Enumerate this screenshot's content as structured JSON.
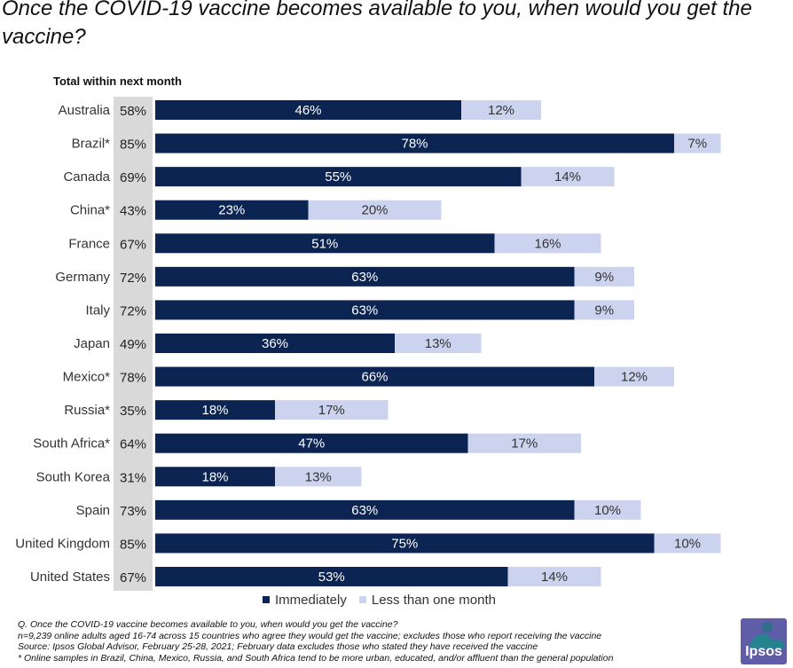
{
  "title": "Once the COVID-19 vaccine becomes available to you, when would you get the vaccine?",
  "total_label": "Total within next month",
  "colors": {
    "immediately": "#0c2452",
    "less_than_month": "#ccd3ee",
    "total_strip": "#d9d9d9",
    "brand": "#5f5ca8"
  },
  "legend": {
    "immediately": "Immediately",
    "less_than_month": "Less than one month"
  },
  "footnotes": {
    "question": "Q. Once the COVID-19 vaccine becomes available to you, when would you get the vaccine?",
    "sample": "n=9,239 online adults aged 16-74 across 15 countries who agree they would get the vaccine; excludes those who report receiving the vaccine",
    "source": "Source: Ipsos Global Advisor, February 25-28, 2021; February data excludes those who stated they have received the vaccine",
    "note": "* Online samples in Brazil, China, Mexico, Russia, and South Africa tend to be more urban, educated, and/or affluent than the general population"
  },
  "logo": {
    "text": "Ipsos"
  },
  "chart_data": {
    "type": "bar",
    "orientation": "horizontal",
    "stacked": true,
    "title": "Once the COVID-19 vaccine becomes available to you, when would you get the vaccine?",
    "xlim": [
      0,
      85
    ],
    "categories": [
      "Australia",
      "Brazil*",
      "Canada",
      "China*",
      "France",
      "Germany",
      "Italy",
      "Japan",
      "Mexico*",
      "Russia*",
      "South Africa*",
      "South Korea",
      "Spain",
      "United Kingdom",
      "United States"
    ],
    "totals": [
      "58%",
      "85%",
      "69%",
      "43%",
      "67%",
      "72%",
      "72%",
      "49%",
      "78%",
      "35%",
      "64%",
      "31%",
      "73%",
      "85%",
      "67%"
    ],
    "series": [
      {
        "name": "Immediately",
        "values": [
          46,
          78,
          55,
          23,
          51,
          63,
          63,
          36,
          66,
          18,
          47,
          18,
          63,
          75,
          53
        ]
      },
      {
        "name": "Less than one month",
        "values": [
          12,
          7,
          14,
          20,
          16,
          9,
          9,
          13,
          12,
          17,
          17,
          13,
          10,
          10,
          14
        ]
      }
    ],
    "legend_position": "bottom"
  }
}
